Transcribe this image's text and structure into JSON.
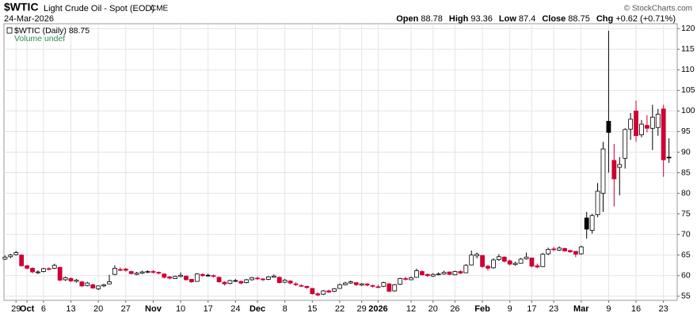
{
  "chart_data": {
    "type": "candlestick",
    "symbol": "$WTIC",
    "title": "Light Crude Oil - Spot (EOD)",
    "exchange": "CME",
    "date": "24-Mar-2026",
    "header_labels": {
      "open": "Open",
      "high": "High",
      "low": "Low",
      "close": "Close",
      "change": "Chg"
    },
    "change": "+0.62",
    "change_pct": "(+0.71%)",
    "credit": "© StockCharts.com",
    "legend": "$WTIC (Daily) 88.75",
    "volume_note": "Volume undef",
    "up_color": "#000000",
    "down_color": "#cc0033",
    "grid": true,
    "xlim": [
      -0.2,
      122.5
    ],
    "ylim": [
      54,
      121.2
    ],
    "yticks": [
      55,
      60,
      65,
      70,
      75,
      80,
      85,
      90,
      95,
      100,
      105,
      110,
      115,
      120
    ],
    "xticks": [
      {
        "value": 2,
        "label": "29"
      },
      {
        "value": 4,
        "label": "Oct"
      },
      {
        "value": 7,
        "label": "6"
      },
      {
        "value": 12,
        "label": "13"
      },
      {
        "value": 17,
        "label": "20"
      },
      {
        "value": 22,
        "label": "27"
      },
      {
        "value": 27,
        "label": "Nov"
      },
      {
        "value": 32,
        "label": "10"
      },
      {
        "value": 37,
        "label": "17"
      },
      {
        "value": 42,
        "label": "24"
      },
      {
        "value": 46,
        "label": "Dec"
      },
      {
        "value": 51,
        "label": "8"
      },
      {
        "value": 56,
        "label": "15"
      },
      {
        "value": 61,
        "label": "22"
      },
      {
        "value": 65,
        "label": "29"
      },
      {
        "value": 68,
        "label": "2026"
      },
      {
        "value": 74,
        "label": "12"
      },
      {
        "value": 78,
        "label": "20"
      },
      {
        "value": 82,
        "label": "26"
      },
      {
        "value": 87,
        "label": "Feb"
      },
      {
        "value": 92,
        "label": "9"
      },
      {
        "value": 96,
        "label": "17"
      },
      {
        "value": 100,
        "label": "23"
      },
      {
        "value": 105,
        "label": "Mar"
      },
      {
        "value": 110,
        "label": "9"
      },
      {
        "value": 115,
        "label": "16"
      },
      {
        "value": 120,
        "label": "23"
      }
    ],
    "ohlc": [
      [
        64.0,
        64.9,
        63.8,
        64.5
      ],
      [
        64.6,
        65.3,
        64.2,
        65.0
      ],
      [
        65.1,
        66.0,
        64.9,
        65.6
      ],
      [
        65.0,
        65.2,
        62.2,
        62.4
      ],
      [
        62.4,
        62.6,
        61.5,
        61.8
      ],
      [
        61.8,
        62.0,
        60.6,
        60.9
      ],
      [
        60.7,
        61.3,
        60.4,
        60.9
      ],
      [
        61.0,
        61.9,
        60.8,
        61.7
      ],
      [
        61.7,
        62.0,
        61.3,
        61.6
      ],
      [
        61.8,
        62.9,
        61.6,
        62.5
      ],
      [
        62.0,
        62.2,
        58.7,
        58.9
      ],
      [
        59.0,
        59.8,
        58.7,
        59.5
      ],
      [
        59.3,
        59.6,
        58.5,
        58.7
      ],
      [
        58.6,
        59.2,
        58.3,
        58.9
      ],
      [
        58.5,
        58.7,
        57.2,
        57.5
      ],
      [
        57.6,
        58.5,
        57.4,
        58.2
      ],
      [
        57.8,
        58.0,
        56.8,
        57.0
      ],
      [
        56.8,
        57.6,
        56.5,
        57.5
      ],
      [
        57.5,
        58.0,
        57.2,
        57.8
      ],
      [
        58.0,
        60.2,
        57.9,
        58.5
      ],
      [
        60.3,
        62.5,
        60.1,
        61.8
      ],
      [
        61.5,
        62.0,
        61.1,
        61.5
      ],
      [
        61.6,
        61.9,
        61.0,
        61.3
      ],
      [
        61.0,
        61.2,
        60.3,
        60.5
      ],
      [
        60.3,
        60.9,
        60.1,
        60.6
      ],
      [
        60.6,
        61.2,
        60.4,
        60.9
      ],
      [
        60.8,
        61.3,
        60.6,
        61.0
      ],
      [
        61.0,
        61.4,
        60.5,
        60.9
      ],
      [
        60.8,
        61.0,
        60.3,
        60.6
      ],
      [
        60.4,
        60.6,
        59.3,
        59.6
      ],
      [
        59.7,
        59.9,
        59.1,
        59.4
      ],
      [
        59.3,
        60.0,
        59.2,
        59.8
      ],
      [
        59.8,
        60.8,
        59.6,
        60.1
      ],
      [
        59.9,
        60.0,
        58.8,
        59.0
      ],
      [
        59.1,
        59.2,
        58.2,
        58.5
      ],
      [
        58.6,
        60.6,
        58.5,
        60.4
      ],
      [
        60.3,
        60.6,
        59.7,
        60.0
      ],
      [
        60.1,
        60.5,
        59.8,
        60.0
      ],
      [
        60.0,
        60.3,
        59.6,
        59.9
      ],
      [
        59.6,
        59.8,
        58.3,
        58.5
      ],
      [
        58.4,
        58.6,
        57.6,
        58.0
      ],
      [
        58.1,
        59.0,
        57.9,
        58.8
      ],
      [
        58.8,
        59.2,
        58.5,
        58.8
      ],
      [
        58.6,
        58.8,
        57.9,
        58.2
      ],
      [
        58.3,
        59.2,
        58.1,
        59.0
      ],
      [
        59.0,
        59.7,
        58.8,
        59.5
      ],
      [
        59.4,
        59.8,
        59.0,
        59.3
      ],
      [
        59.2,
        59.4,
        58.7,
        59.0
      ],
      [
        59.1,
        59.9,
        58.9,
        59.7
      ],
      [
        59.6,
        60.3,
        59.5,
        59.9
      ],
      [
        59.6,
        59.8,
        58.1,
        58.3
      ],
      [
        58.4,
        59.2,
        58.2,
        58.9
      ],
      [
        58.7,
        58.9,
        57.9,
        58.2
      ],
      [
        58.0,
        58.4,
        57.5,
        57.8
      ],
      [
        57.6,
        57.9,
        57.3,
        57.6
      ],
      [
        57.4,
        57.5,
        56.8,
        57.1
      ],
      [
        56.9,
        57.0,
        55.4,
        55.6
      ],
      [
        55.6,
        56.0,
        55.0,
        55.3
      ],
      [
        55.5,
        56.5,
        55.3,
        56.3
      ],
      [
        56.3,
        56.6,
        55.8,
        56.0
      ],
      [
        56.2,
        57.0,
        56.0,
        56.8
      ],
      [
        56.9,
        58.1,
        56.8,
        57.8
      ],
      [
        57.8,
        58.5,
        57.6,
        58.2
      ],
      [
        58.2,
        58.8,
        58.0,
        58.5
      ],
      [
        58.3,
        58.4,
        57.5,
        57.8
      ],
      [
        57.7,
        58.2,
        57.5,
        58.0
      ],
      [
        58.0,
        58.1,
        57.4,
        57.7
      ],
      [
        57.6,
        57.8,
        57.1,
        57.4
      ],
      [
        57.3,
        57.8,
        57.0,
        57.3
      ],
      [
        57.4,
        58.5,
        57.2,
        58.3
      ],
      [
        58.0,
        58.2,
        56.0,
        56.2
      ],
      [
        56.3,
        58.0,
        56.1,
        57.8
      ],
      [
        57.9,
        59.5,
        57.7,
        59.3
      ],
      [
        59.3,
        59.7,
        58.8,
        59.1
      ],
      [
        59.0,
        59.8,
        58.9,
        59.5
      ],
      [
        59.6,
        61.7,
        59.5,
        61.2
      ],
      [
        61.0,
        61.3,
        60.0,
        60.2
      ],
      [
        60.3,
        60.5,
        59.7,
        60.0
      ],
      [
        59.9,
        60.6,
        59.7,
        60.3
      ],
      [
        60.3,
        60.8,
        60.1,
        60.4
      ],
      [
        60.4,
        61.2,
        60.2,
        60.8
      ],
      [
        60.9,
        61.0,
        60.1,
        60.3
      ],
      [
        60.2,
        61.2,
        60.1,
        61.0
      ],
      [
        61.0,
        61.3,
        60.4,
        60.6
      ],
      [
        60.7,
        62.8,
        60.6,
        62.5
      ],
      [
        62.6,
        66.1,
        62.5,
        65.0
      ],
      [
        64.8,
        65.6,
        64.2,
        65.2
      ],
      [
        64.9,
        65.0,
        61.9,
        62.2
      ],
      [
        62.3,
        62.6,
        61.2,
        61.8
      ],
      [
        61.9,
        64.2,
        61.7,
        63.8
      ],
      [
        63.9,
        65.2,
        63.6,
        64.6
      ],
      [
        64.5,
        64.7,
        63.2,
        63.5
      ],
      [
        63.6,
        63.9,
        62.5,
        62.8
      ],
      [
        62.7,
        63.4,
        62.4,
        63.0
      ],
      [
        63.0,
        64.3,
        62.9,
        64.0
      ],
      [
        64.1,
        65.6,
        63.9,
        64.5
      ],
      [
        64.3,
        64.4,
        62.0,
        62.3
      ],
      [
        62.4,
        62.9,
        61.8,
        62.1
      ],
      [
        62.2,
        65.5,
        62.1,
        65.2
      ],
      [
        65.3,
        66.8,
        65.0,
        66.4
      ],
      [
        66.5,
        67.0,
        65.9,
        66.3
      ],
      [
        66.2,
        67.1,
        66.0,
        66.7
      ],
      [
        66.6,
        66.8,
        65.8,
        66.0
      ],
      [
        66.1,
        66.3,
        65.5,
        65.8
      ],
      [
        65.9,
        66.0,
        64.5,
        65.2
      ],
      [
        65.3,
        67.3,
        65.1,
        67.0
      ],
      [
        74.0,
        75.5,
        69.0,
        71.3
      ],
      [
        71.0,
        75.0,
        70.2,
        74.6
      ],
      [
        74.8,
        82.5,
        74.2,
        80.5
      ],
      [
        80.0,
        92.5,
        75.5,
        90.8
      ],
      [
        97.5,
        119.5,
        85.0,
        94.8
      ],
      [
        88.0,
        92.0,
        76.8,
        83.5
      ],
      [
        86.3,
        88.8,
        79.5,
        87.0
      ],
      [
        88.5,
        95.8,
        86.0,
        95.5
      ],
      [
        95.6,
        99.5,
        93.0,
        98.0
      ],
      [
        100.0,
        102.5,
        92.5,
        94.0
      ],
      [
        94.2,
        97.8,
        93.6,
        96.8
      ],
      [
        96.5,
        99.0,
        94.8,
        95.8
      ],
      [
        95.8,
        101.5,
        90.5,
        98.5
      ],
      [
        96.0,
        100.5,
        94.0,
        99.2
      ],
      [
        100.5,
        101.5,
        84.0,
        88.13
      ],
      [
        88.78,
        93.36,
        87.4,
        88.75
      ]
    ]
  }
}
